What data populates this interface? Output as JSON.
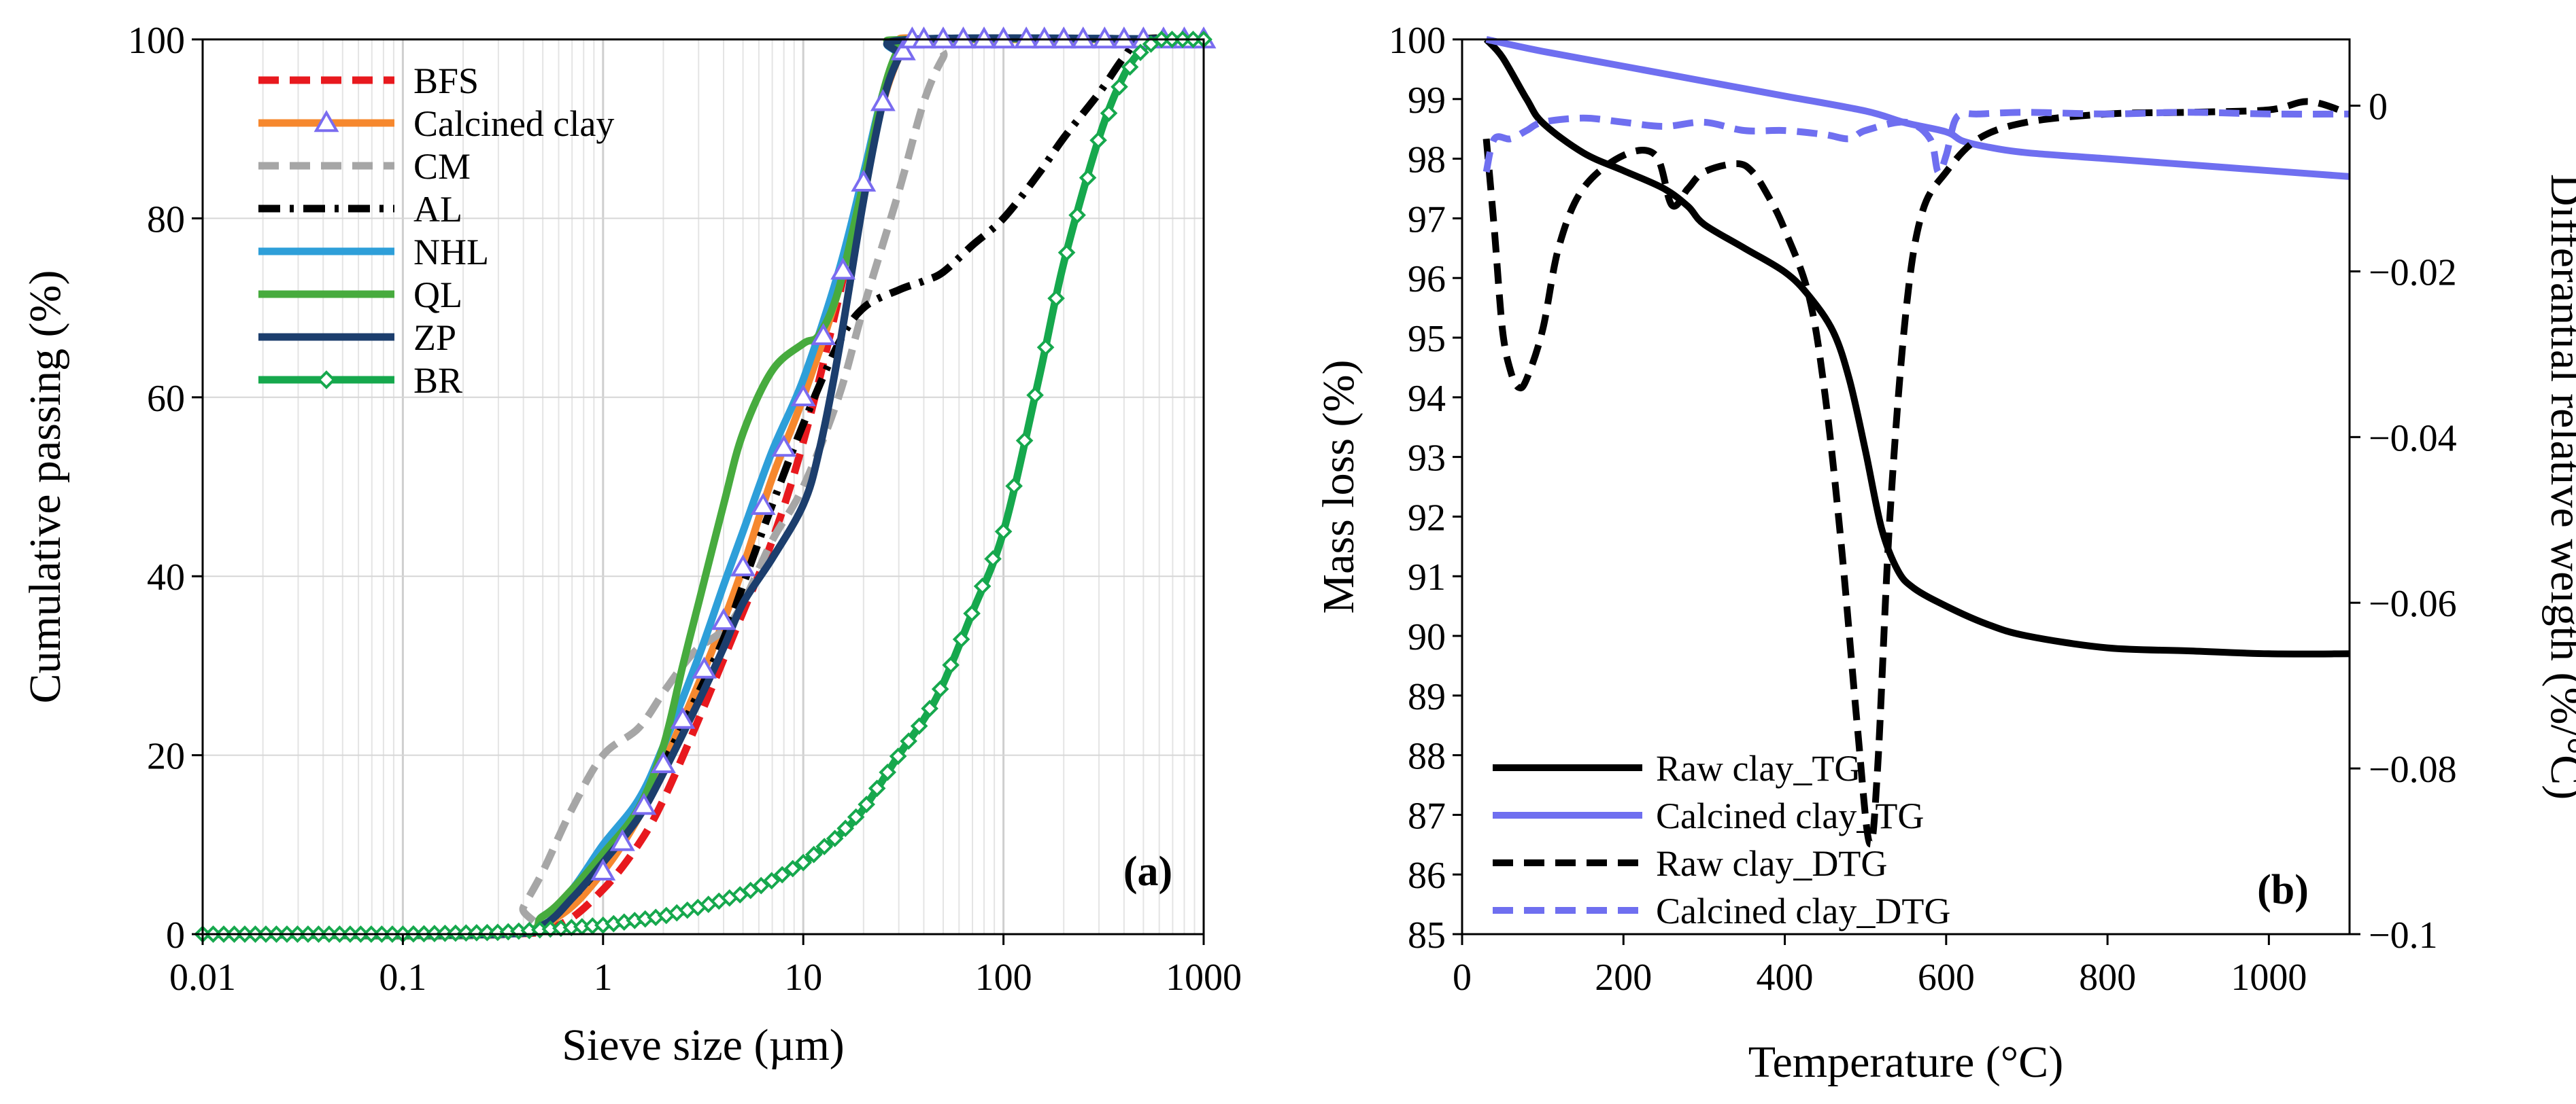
{
  "chart_data": [
    {
      "panel": "a",
      "type": "line",
      "panel_label": "(a)",
      "xlabel": "Sieve size (µm)",
      "ylabel": "Cumulative passing (%)",
      "xscale": "log",
      "xlim": [
        0.01,
        1000
      ],
      "ylim": [
        0,
        100
      ],
      "xticks": [
        0.01,
        0.1,
        1,
        10,
        100,
        1000
      ],
      "xtick_labels": [
        "0.01",
        "0.1",
        "1",
        "10",
        "100",
        "1000"
      ],
      "yticks": [
        0,
        20,
        40,
        60,
        80,
        100
      ],
      "ytick_labels": [
        "0",
        "20",
        "40",
        "60",
        "80",
        "100"
      ],
      "grid": "log minor",
      "legend_position": "top-left",
      "series": [
        {
          "name": "BFS",
          "color": "#e8191e",
          "style": "dashed",
          "marker": "none",
          "x": [
            0.01,
            0.3,
            0.6,
            1,
            1.5,
            2,
            3,
            5,
            7,
            10,
            15,
            20,
            25,
            30,
            35,
            40,
            1000
          ],
          "y": [
            0,
            0,
            1,
            5,
            10,
            15,
            24,
            36,
            44,
            55,
            71,
            84,
            93,
            98,
            100,
            100,
            100
          ]
        },
        {
          "name": "Calcined clay",
          "color": "#f6882e",
          "style": "solid",
          "marker": "triangle",
          "x": [
            0.01,
            0.3,
            0.6,
            1,
            1.5,
            2,
            3,
            4,
            5,
            7,
            10,
            15,
            20,
            25,
            30,
            35,
            40,
            1000
          ],
          "y": [
            0,
            0,
            2,
            7,
            13,
            19,
            28,
            35,
            41,
            51,
            60,
            72,
            84,
            93,
            98,
            100,
            100,
            100
          ]
        },
        {
          "name": "CM",
          "color": "#a6a6a6",
          "style": "dashed",
          "marker": "none",
          "x": [
            0.01,
            0.35,
            0.4,
            0.5,
            0.7,
            1,
            1.5,
            2,
            2.5,
            3,
            4,
            5,
            7,
            10,
            15,
            20,
            30,
            40,
            50,
            60,
            1000
          ],
          "y": [
            0,
            0,
            3,
            7,
            14,
            20,
            23,
            27,
            30,
            32,
            34,
            37,
            44,
            50,
            60,
            70,
            83,
            93,
            98,
            100,
            100
          ]
        },
        {
          "name": "AL",
          "color": "#000000",
          "style": "dashdot",
          "marker": "none",
          "x": [
            0.01,
            0.3,
            0.5,
            0.7,
            1,
            1.5,
            2,
            3,
            4,
            5,
            7,
            10,
            15,
            20,
            30,
            40,
            50,
            70,
            100,
            150,
            200,
            300,
            400,
            500,
            1000
          ],
          "y": [
            0,
            0,
            1,
            4,
            8,
            14,
            19,
            27,
            33,
            39,
            48,
            57,
            66,
            70,
            72,
            73,
            74,
            77,
            80,
            85,
            89,
            94,
            98,
            100,
            100
          ]
        },
        {
          "name": "NHL",
          "color": "#2e9fd9",
          "style": "solid",
          "marker": "none",
          "x": [
            0.01,
            0.3,
            0.5,
            0.7,
            1,
            1.5,
            2,
            3,
            4,
            5,
            7,
            10,
            15,
            20,
            25,
            30,
            35,
            1000
          ],
          "y": [
            0,
            0,
            2,
            5,
            10,
            15,
            21,
            31,
            39,
            45,
            54,
            62,
            74,
            85,
            94,
            98,
            100,
            100
          ]
        },
        {
          "name": "QL",
          "color": "#47ab3e",
          "style": "solid",
          "marker": "none",
          "x": [
            0.01,
            0.3,
            0.5,
            0.7,
            1,
            1.5,
            2,
            2.5,
            3,
            4,
            5,
            7,
            10,
            12,
            15,
            20,
            25,
            30,
            35,
            1000
          ],
          "y": [
            0,
            0,
            2,
            5,
            9,
            14,
            21,
            30,
            37,
            48,
            56,
            63,
            66,
            67,
            72,
            84,
            94,
            99,
            100,
            100
          ]
        },
        {
          "name": "ZP",
          "color": "#1c3e6d",
          "style": "solid",
          "marker": "none",
          "x": [
            0.01,
            0.3,
            0.5,
            0.7,
            1,
            1.5,
            2,
            3,
            4,
            5,
            7,
            10,
            12,
            15,
            20,
            25,
            30,
            35,
            1000
          ],
          "y": [
            0,
            0,
            1,
            4,
            8,
            13,
            18,
            26,
            32,
            37,
            42,
            48,
            54,
            65,
            82,
            93,
            98,
            100,
            100
          ]
        },
        {
          "name": "BR",
          "color": "#16a84d",
          "style": "solid",
          "marker": "diamond",
          "x": [
            0.01,
            0.1,
            0.3,
            0.5,
            1,
            2,
            3,
            5,
            7,
            10,
            15,
            20,
            30,
            40,
            50,
            70,
            100,
            150,
            200,
            300,
            400,
            500,
            600,
            700,
            800,
            1000
          ],
          "y": [
            0,
            0,
            0.2,
            0.5,
            1,
            2,
            3,
            4.5,
            6,
            8,
            11,
            14,
            20,
            24,
            28,
            36,
            45,
            62,
            75,
            89,
            96,
            99,
            100,
            100,
            100,
            100
          ]
        }
      ]
    },
    {
      "panel": "b",
      "type": "line",
      "panel_label": "(b)",
      "xlabel": "Temperature (°C)",
      "ylabel": "Mass loss (%)",
      "y2label": "Differantial relative weigth (%/°C)",
      "xlim": [
        0,
        1100
      ],
      "ylim": [
        85,
        100
      ],
      "y2lim": [
        -0.1,
        0.008
      ],
      "xticks": [
        0,
        200,
        400,
        600,
        800,
        1000
      ],
      "xtick_labels": [
        "0",
        "200",
        "400",
        "600",
        "800",
        "1000"
      ],
      "yticks": [
        85,
        86,
        87,
        88,
        89,
        90,
        91,
        92,
        93,
        94,
        95,
        96,
        97,
        98,
        99,
        100
      ],
      "ytick_labels": [
        "85",
        "86",
        "87",
        "88",
        "89",
        "90",
        "91",
        "92",
        "93",
        "94",
        "95",
        "96",
        "97",
        "98",
        "99",
        "100"
      ],
      "y2ticks": [
        0,
        -0.02,
        -0.04,
        -0.06,
        -0.08,
        -0.1
      ],
      "y2tick_labels": [
        "0",
        "−0.02",
        "−0.04",
        "−0.06",
        "−0.08",
        "−0.1"
      ],
      "grid": "off",
      "legend_position": "bottom-left",
      "series": [
        {
          "name": "Raw clay_TG",
          "axis": "left",
          "color": "#000000",
          "style": "solid",
          "x": [
            30,
            50,
            80,
            100,
            150,
            200,
            250,
            280,
            300,
            350,
            400,
            430,
            460,
            480,
            500,
            520,
            540,
            560,
            600,
            650,
            700,
            800,
            900,
            1000,
            1100
          ],
          "y": [
            100,
            99.7,
            99.0,
            98.6,
            98.1,
            97.8,
            97.5,
            97.2,
            96.9,
            96.5,
            96.1,
            95.7,
            95.1,
            94.3,
            93.1,
            91.8,
            91.1,
            90.8,
            90.5,
            90.2,
            90.0,
            89.8,
            89.75,
            89.7,
            89.7
          ]
        },
        {
          "name": "Calcined clay_TG",
          "axis": "left",
          "color": "#6f6ff0",
          "style": "solid",
          "x": [
            30,
            100,
            200,
            300,
            400,
            500,
            550,
            600,
            620,
            650,
            700,
            800,
            900,
            1000,
            1100
          ],
          "y": [
            100,
            99.8,
            99.55,
            99.3,
            99.05,
            98.8,
            98.6,
            98.45,
            98.3,
            98.2,
            98.1,
            98.0,
            97.9,
            97.8,
            97.7
          ]
        },
        {
          "name": "Raw clay_DTG",
          "axis": "right",
          "color": "#000000",
          "style": "dashed",
          "x": [
            30,
            40,
            50,
            60,
            70,
            80,
            100,
            120,
            150,
            200,
            240,
            260,
            280,
            300,
            340,
            360,
            380,
            400,
            430,
            450,
            470,
            490,
            505,
            515,
            530,
            550,
            570,
            600,
            640,
            700,
            800,
            900,
            1000,
            1050,
            1100
          ],
          "y": [
            -0.004,
            -0.015,
            -0.027,
            -0.032,
            -0.034,
            -0.033,
            -0.027,
            -0.017,
            -0.01,
            -0.006,
            -0.006,
            -0.012,
            -0.01,
            -0.008,
            -0.007,
            -0.008,
            -0.011,
            -0.015,
            -0.023,
            -0.035,
            -0.053,
            -0.075,
            -0.089,
            -0.08,
            -0.05,
            -0.025,
            -0.013,
            -0.008,
            -0.004,
            -0.002,
            -0.001,
            -0.0008,
            -0.0005,
            0.0005,
            -0.001
          ]
        },
        {
          "name": "Calcined clay_DTG",
          "axis": "right",
          "color": "#6f6ff0",
          "style": "dashed",
          "x": [
            30,
            40,
            60,
            80,
            100,
            150,
            200,
            250,
            300,
            350,
            400,
            450,
            480,
            500,
            550,
            580,
            590,
            600,
            610,
            620,
            640,
            700,
            800,
            900,
            1000,
            1100
          ],
          "y": [
            -0.008,
            -0.004,
            -0.004,
            -0.003,
            -0.002,
            -0.0015,
            -0.002,
            -0.0025,
            -0.002,
            -0.003,
            -0.003,
            -0.0035,
            -0.004,
            -0.003,
            -0.002,
            -0.004,
            -0.008,
            -0.006,
            -0.002,
            -0.001,
            -0.001,
            -0.0008,
            -0.001,
            -0.0008,
            -0.001,
            -0.001
          ]
        }
      ]
    }
  ]
}
